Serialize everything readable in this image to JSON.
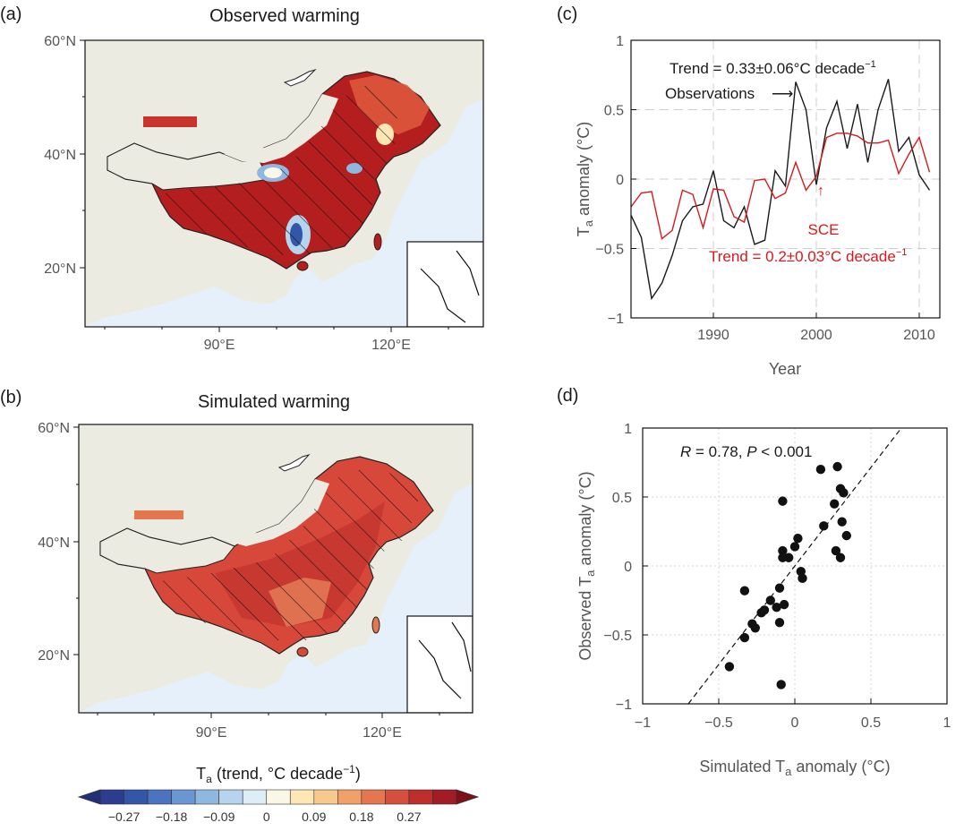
{
  "panels": {
    "a": {
      "label": "(a)",
      "title": "Observed warming"
    },
    "b": {
      "label": "(b)",
      "title": "Simulated warming"
    },
    "c": {
      "label": "(c)"
    },
    "d": {
      "label": "(d)"
    }
  },
  "maps": {
    "lat_labels": [
      "60°N",
      "40°N",
      "20°N"
    ],
    "lon_labels": [
      "90°E",
      "120°E"
    ],
    "colors": {
      "land": "#ecebe1",
      "ocean": "#e6f0fa",
      "warm_dark": "#b41e1e",
      "warm_mid": "#d8483a",
      "cool": "#4f7fc0"
    }
  },
  "colorbar": {
    "label_main": "T",
    "label_sub": "a",
    "label_rest": " (trend, °C decade",
    "label_sup": "−1",
    "label_end": ")",
    "ticks": [
      "−0.27",
      "−0.18",
      "−0.09",
      "0",
      "0.09",
      "0.18",
      "0.27"
    ],
    "colors": [
      "#2c3c8f",
      "#3356a8",
      "#4b73c0",
      "#6a96d2",
      "#8fb8e0",
      "#b5d5ee",
      "#ddeef7",
      "#fbf7e6",
      "#fde7b5",
      "#f8c98c",
      "#f2a06a",
      "#e57750",
      "#d4503c",
      "#bd2f2c",
      "#a11c24"
    ]
  },
  "chart_data": [
    {
      "type": "line",
      "panel": "c",
      "xlabel": "Year",
      "ylabel_main": "T",
      "ylabel_sub": "a",
      "ylabel_rest": " anomaly (°C)",
      "xlim": [
        1982,
        2012
      ],
      "ylim": [
        -1,
        1
      ],
      "xticks": [
        "1990",
        "2000",
        "2010"
      ],
      "yticks": [
        "1",
        "0.5",
        "0",
        "−0.5",
        "−1"
      ],
      "grid": true,
      "x": [
        1982,
        1983,
        1984,
        1985,
        1986,
        1987,
        1988,
        1989,
        1990,
        1991,
        1992,
        1993,
        1994,
        1995,
        1996,
        1997,
        1998,
        1999,
        2000,
        2001,
        2002,
        2003,
        2004,
        2005,
        2006,
        2007,
        2008,
        2009,
        2010,
        2011
      ],
      "series": [
        {
          "name": "Observations",
          "color": "#1a1a1a",
          "values": [
            -0.26,
            -0.42,
            -0.86,
            -0.75,
            -0.55,
            -0.3,
            -0.2,
            -0.18,
            0.06,
            -0.3,
            -0.35,
            -0.2,
            -0.47,
            -0.44,
            0.06,
            -0.05,
            0.7,
            0.5,
            -0.04,
            0.37,
            0.56,
            0.22,
            0.54,
            0.12,
            0.5,
            0.72,
            0.2,
            0.3,
            0.03,
            -0.08
          ]
        },
        {
          "name": "SCE",
          "color": "#d7191c",
          "values": [
            -0.2,
            -0.1,
            -0.09,
            -0.43,
            -0.37,
            -0.08,
            -0.11,
            -0.35,
            -0.07,
            -0.08,
            -0.27,
            -0.31,
            -0.01,
            0.0,
            -0.14,
            -0.1,
            0.12,
            -0.08,
            0.02,
            0.3,
            0.33,
            0.33,
            0.31,
            0.26,
            0.26,
            0.28,
            0.04,
            0.18,
            0.3,
            0.05
          ]
        }
      ],
      "annotations": {
        "obs_trend": "Trend = 0.33±0.06°C decade",
        "obs_trend_sup": "−1",
        "obs_label": "Observations",
        "obs_arrow": "⟶",
        "sce_label": "SCE",
        "sce_arrow": "↑",
        "sce_trend": "Trend = 0.2±0.03°C decade",
        "sce_trend_sup": "−1"
      }
    },
    {
      "type": "scatter",
      "panel": "d",
      "xlabel_main": "Simulated T",
      "xlabel_sub": "a",
      "xlabel_rest": " anomaly (°C)",
      "ylabel_main": "Observed T",
      "ylabel_sub": "a",
      "ylabel_rest": "  anomaly (°C)",
      "xlim": [
        -1,
        1
      ],
      "ylim": [
        -1,
        1
      ],
      "xticks": [
        "−1",
        "−0.5",
        "0",
        "0.5",
        "1"
      ],
      "yticks": [
        "1",
        "0.5",
        "0",
        "−0.5",
        "−1"
      ],
      "grid": true,
      "stat_r_label": "R",
      "stat_r_value": " = 0.78,  ",
      "stat_p_label": "P",
      "stat_p_value": " < 0.001",
      "fit_line": {
        "x": [
          -0.7,
          0.7
        ],
        "y": [
          -1.0,
          1.0
        ]
      },
      "x": [
        0.17,
        0.28,
        0.3,
        0.32,
        0.31,
        0.34,
        0.26,
        0.19,
        0.3,
        0.27,
        -0.08,
        -0.08,
        0.0,
        0.02,
        -0.04,
        -0.08,
        -0.07,
        0.04,
        0.05,
        -0.16,
        -0.1,
        -0.33,
        -0.22,
        -0.2,
        -0.12,
        -0.1,
        -0.28,
        -0.33,
        -0.26,
        -0.43,
        -0.09
      ],
      "y": [
        0.7,
        0.72,
        0.56,
        0.53,
        0.32,
        0.22,
        0.45,
        0.29,
        0.06,
        0.11,
        0.47,
        0.11,
        0.14,
        0.2,
        0.06,
        0.06,
        -0.28,
        -0.04,
        -0.09,
        -0.25,
        -0.16,
        -0.18,
        -0.34,
        -0.32,
        -0.3,
        -0.41,
        -0.42,
        -0.52,
        -0.45,
        -0.73,
        -0.86
      ]
    }
  ]
}
